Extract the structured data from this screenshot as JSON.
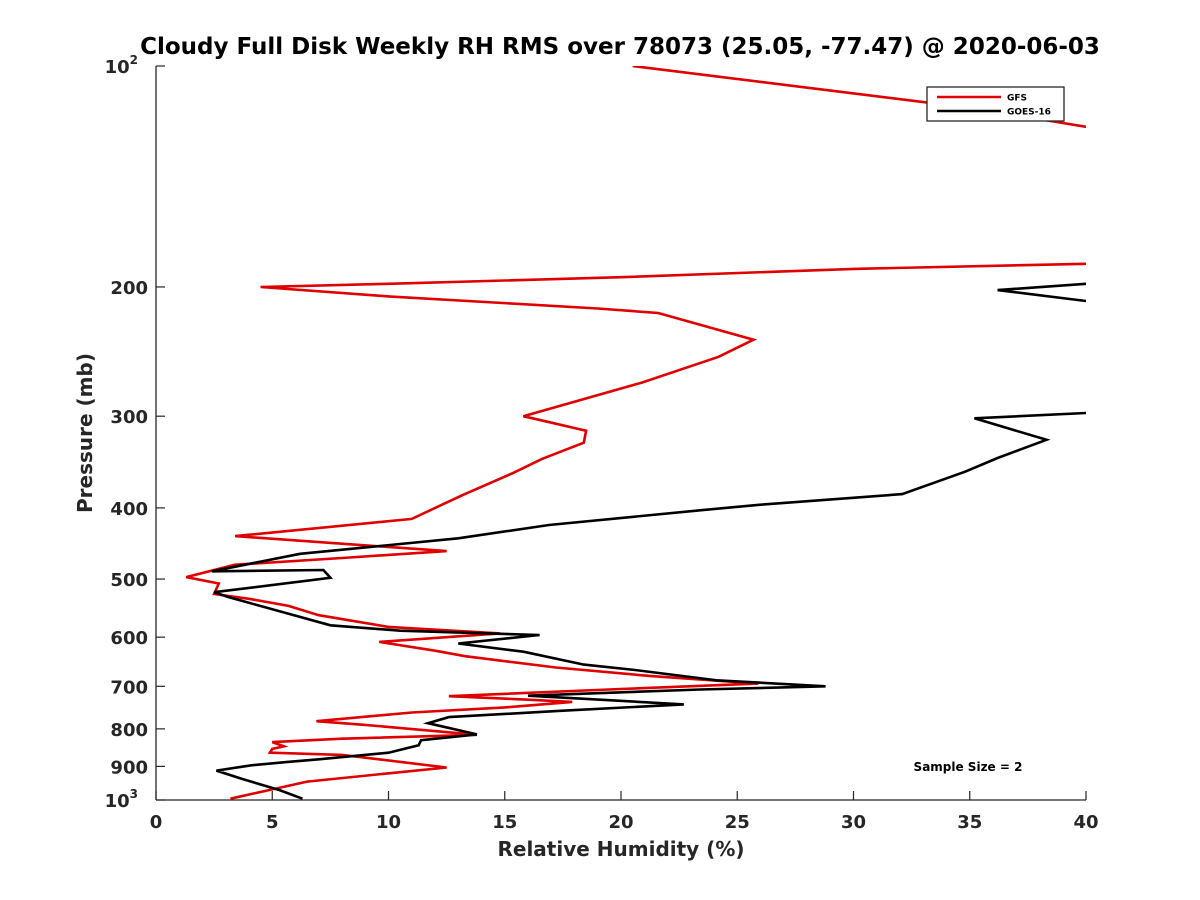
{
  "chart_data": {
    "type": "line",
    "title": "Cloudy Full Disk Weekly RH RMS over 78073 (25.05, -77.47) @ 2020-06-03",
    "xlabel": "Relative Humidity (%)",
    "ylabel": "Pressure (mb)",
    "xlim": [
      0,
      40
    ],
    "ylim": [
      100,
      1000
    ],
    "y_scale": "log",
    "y_reversed": true,
    "grid": false,
    "legend_position": "top-right",
    "x_ticks": [
      "0",
      "5",
      "10",
      "15",
      "20",
      "25",
      "30",
      "35",
      "40"
    ],
    "y_ticks": [
      {
        "value": 100,
        "base": "10",
        "exp": "2"
      },
      {
        "value": 200,
        "label": "200"
      },
      {
        "value": 300,
        "label": "300"
      },
      {
        "value": 400,
        "label": "400"
      },
      {
        "value": 500,
        "label": "500"
      },
      {
        "value": 600,
        "label": "600"
      },
      {
        "value": 700,
        "label": "700"
      },
      {
        "value": 800,
        "label": "800"
      },
      {
        "value": 900,
        "label": "900"
      },
      {
        "value": 1000,
        "base": "10",
        "exp": "3"
      }
    ],
    "annotation": "Sample Size = 2",
    "series": [
      {
        "name": "GFS",
        "color": "#e00000",
        "segments": [
          [
            [
              20.5,
              100
            ],
            [
              35,
              114
            ],
            [
              40,
              121
            ]
          ],
          [
            [
              40,
              186
            ],
            [
              30,
              189
            ],
            [
              20,
              194
            ],
            [
              10,
              198
            ],
            [
              4.5,
              200
            ],
            [
              10,
              206
            ],
            [
              19,
              214
            ],
            [
              21.6,
              217
            ],
            [
              25.7,
              236
            ],
            [
              24.2,
              249
            ],
            [
              20.9,
              270
            ],
            [
              15.8,
              300
            ],
            [
              18.5,
              314
            ],
            [
              18.4,
              326
            ],
            [
              16.6,
              343
            ],
            [
              15.4,
              358
            ],
            [
              13.2,
              384
            ],
            [
              11,
              414
            ],
            [
              3.4,
              437
            ],
            [
              12.5,
              458
            ],
            [
              8,
              468
            ],
            [
              3.4,
              478
            ],
            [
              1.3,
              497
            ],
            [
              2.7,
              507
            ],
            [
              2.5,
              524
            ],
            [
              4,
              532
            ],
            [
              5.7,
              544
            ],
            [
              7,
              560
            ],
            [
              10,
              581
            ],
            [
              14.8,
              593
            ],
            [
              9.6,
              609
            ],
            [
              12,
              626
            ],
            [
              13.3,
              637
            ],
            [
              17.2,
              660
            ],
            [
              21.3,
              678
            ],
            [
              25.9,
              694
            ],
            [
              20,
              706
            ],
            [
              12.6,
              722
            ],
            [
              16,
              730
            ],
            [
              17.9,
              735
            ],
            [
              15,
              748
            ],
            [
              11,
              760
            ],
            [
              6.9,
              781
            ],
            [
              9,
              790
            ],
            [
              13.8,
              815
            ],
            [
              8,
              825
            ],
            [
              5,
              834
            ],
            [
              5.5,
              845
            ],
            [
              5,
              852
            ],
            [
              4.9,
              862
            ],
            [
              8,
              868
            ],
            [
              12.5,
              903
            ],
            [
              10.4,
              917
            ],
            [
              6.5,
              944
            ],
            [
              3.2,
              996
            ]
          ]
        ]
      },
      {
        "name": "GOES-16",
        "color": "#000000",
        "segments": [
          [
            [
              40,
              198
            ],
            [
              36.2,
              202
            ],
            [
              40,
              209
            ]
          ],
          [
            [
              40,
              297
            ],
            [
              35.2,
              302
            ],
            [
              38.3,
              323
            ],
            [
              36.2,
              342
            ],
            [
              34.8,
              357
            ],
            [
              32.1,
              383
            ],
            [
              26,
              396
            ],
            [
              23.4,
              403
            ],
            [
              16.9,
              422
            ],
            [
              13,
              440
            ],
            [
              6.2,
              462
            ],
            [
              2.4,
              488
            ],
            [
              7.2,
              486
            ],
            [
              7.5,
              498
            ],
            [
              2.5,
              521
            ],
            [
              3.1,
              529
            ],
            [
              7.5,
              578
            ],
            [
              10.5,
              588
            ],
            [
              16.5,
              596
            ],
            [
              13,
              612
            ],
            [
              15.8,
              628
            ],
            [
              18.4,
              654
            ],
            [
              20.6,
              665
            ],
            [
              24.1,
              687
            ],
            [
              28.8,
              700
            ],
            [
              23.4,
              707
            ],
            [
              16,
              721
            ],
            [
              22.7,
              741
            ],
            [
              17.4,
              756
            ],
            [
              12.6,
              771
            ],
            [
              11.7,
              786
            ],
            [
              13.8,
              814
            ],
            [
              11.4,
              829
            ],
            [
              11.3,
              842
            ],
            [
              10,
              862
            ],
            [
              7,
              880
            ],
            [
              5.6,
              888
            ],
            [
              4.1,
              897
            ],
            [
              2.6,
              912
            ],
            [
              3.7,
              936
            ],
            [
              5.3,
              969
            ],
            [
              6.3,
              996
            ]
          ]
        ]
      }
    ]
  }
}
